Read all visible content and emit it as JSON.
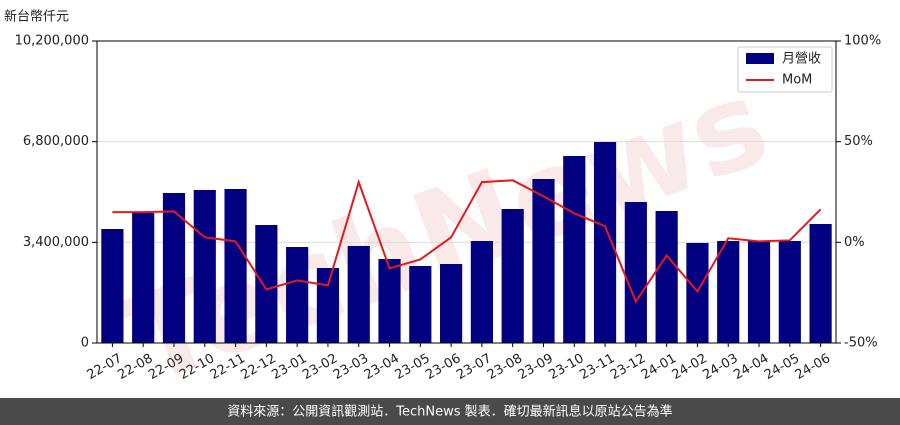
{
  "chart_data": {
    "type": "bar",
    "ylabel": "新台幣仟元",
    "watermark": "TechNews",
    "footer": "資料來源：公開資訊觀測站．TechNews 製表．確切最新訊息以原站公告為準",
    "categories": [
      "22-07",
      "22-08",
      "22-09",
      "22-10",
      "22-11",
      "22-12",
      "23-01",
      "23-02",
      "23-03",
      "23-04",
      "23-05",
      "23-06",
      "23-07",
      "23-08",
      "23-09",
      "23-10",
      "23-11",
      "23-12",
      "24-01",
      "24-02",
      "24-03",
      "24-04",
      "24-05",
      "24-06"
    ],
    "series": [
      {
        "name": "月營收",
        "type": "bar",
        "color": "#000080",
        "values": [
          3850000,
          4390000,
          5066000,
          5168000,
          5201000,
          3985000,
          3242000,
          2533000,
          3276000,
          2837000,
          2601000,
          2668000,
          3445000,
          4526000,
          5539000,
          6316000,
          6789000,
          4762000,
          4458000,
          3378000,
          3445000,
          3445000,
          3445000,
          4019000
        ]
      },
      {
        "name": "MoM",
        "type": "line",
        "color": "#e31a1c",
        "axis": "y2",
        "values": [
          15,
          15,
          15.4,
          2.5,
          0.5,
          -23.4,
          -18.9,
          -21.4,
          29.9,
          -12.9,
          -8.5,
          2.5,
          29.9,
          30.8,
          22.9,
          14.4,
          8,
          -29.4,
          -6.5,
          -24.4,
          2,
          0.5,
          1,
          16.4
        ]
      }
    ],
    "ylim": [
      0,
      10200000
    ],
    "yticks": [
      0,
      {
        "value": 3400000,
        "label": "3,400,000"
      },
      {
        "value": 6800000,
        "label": "6,800,000"
      },
      {
        "value": 10200000,
        "label": "10,200,000"
      }
    ],
    "y2lim": [
      -50,
      100
    ],
    "y2ticks": [
      {
        "value": -50,
        "label": "-50%"
      },
      {
        "value": 0,
        "label": "0%"
      },
      {
        "value": 50,
        "label": "50%"
      },
      {
        "value": 100,
        "label": "100%"
      }
    ],
    "grid": true,
    "legend": "upper right"
  }
}
